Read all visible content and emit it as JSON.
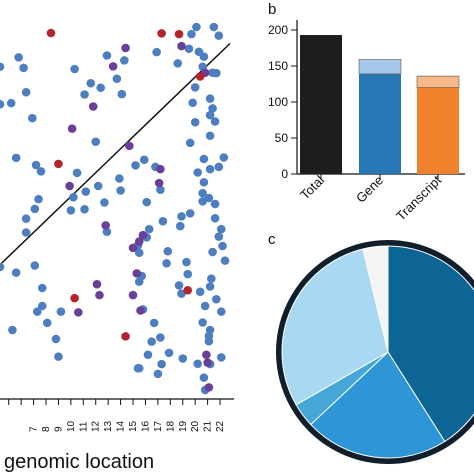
{
  "panel_labels": {
    "b": "b",
    "c": "c"
  },
  "chart_data": [
    {
      "type": "scatter",
      "xlabel": "genomic location",
      "x_ticks": [
        "7",
        "8",
        "9",
        "10",
        "11",
        "12",
        "13",
        "14",
        "15",
        "16",
        "17",
        "18",
        "19",
        "20",
        "21",
        "22"
      ],
      "xlim": [
        4.3,
        22.8
      ],
      "ylim": [
        0,
        1
      ],
      "series": [
        {
          "color": "#4d7fc0",
          "points": [
            [
              4.3,
              0.886
            ],
            [
              4.3,
              0.786
            ],
            [
              4.3,
              0.352
            ],
            [
              5.2,
              0.789
            ],
            [
              5.8,
              0.911
            ],
            [
              6.2,
              0.883
            ],
            [
              6.4,
              0.818
            ],
            [
              6.9,
              0.749
            ],
            [
              5.6,
              0.643
            ],
            [
              7.2,
              0.624
            ],
            [
              7.6,
              0.607
            ],
            [
              7.4,
              0.533
            ],
            [
              7.1,
              0.507
            ],
            [
              6.4,
              0.481
            ],
            [
              6.4,
              0.444
            ],
            [
              7.1,
              0.356
            ],
            [
              5.6,
              0.337
            ],
            [
              7.7,
              0.296
            ],
            [
              7.7,
              0.248
            ],
            [
              7.3,
              0.233
            ],
            [
              5.3,
              0.184
            ],
            [
              8.1,
              0.203
            ],
            [
              9.2,
              0.233
            ],
            [
              8.8,
              0.16
            ],
            [
              9.0,
              0.113
            ],
            [
              10.3,
              0.88
            ],
            [
              11.1,
              0.812
            ],
            [
              11.6,
              0.842
            ],
            [
              12.4,
              0.83
            ],
            [
              12.9,
              0.916
            ],
            [
              13.7,
              0.854
            ],
            [
              14.1,
              0.813
            ],
            [
              12.0,
              0.686
            ],
            [
              10.5,
              0.603
            ],
            [
              11.2,
              0.553
            ],
            [
              12.2,
              0.568
            ],
            [
              12.7,
              0.524
            ],
            [
              10.2,
              0.538
            ],
            [
              10.0,
              0.503
            ],
            [
              11.1,
              0.506
            ],
            [
              13.9,
              0.588
            ],
            [
              14.0,
              0.556
            ],
            [
              12.9,
              0.446
            ],
            [
              15.2,
              0.623
            ],
            [
              15.9,
              0.638
            ],
            [
              16.8,
              0.619
            ],
            [
              16.1,
              0.525
            ],
            [
              16.3,
              0.453
            ],
            [
              17.2,
              0.558
            ],
            [
              17.4,
              0.474
            ],
            [
              15.4,
              0.41
            ],
            [
              15.5,
              0.39
            ],
            [
              16.1,
              0.431
            ],
            [
              15.7,
              0.328
            ],
            [
              15.5,
              0.313
            ],
            [
              15.8,
              0.239
            ],
            [
              16.7,
              0.203
            ],
            [
              16.5,
              0.153
            ],
            [
              17.2,
              0.164
            ],
            [
              16.2,
              0.118
            ],
            [
              15.5,
              0.082
            ],
            [
              15.4,
              0.082
            ],
            [
              17.0,
              0.067
            ],
            [
              17.3,
              0.093
            ],
            [
              17.9,
              0.123
            ],
            [
              19.0,
              0.108
            ],
            [
              20.2,
              0.094
            ],
            [
              21.2,
              0.093
            ],
            [
              20.7,
              0.057
            ],
            [
              21.1,
              0.168
            ],
            [
              20.6,
              0.204
            ],
            [
              20.8,
              0.248
            ],
            [
              20.4,
              0.286
            ],
            [
              18.9,
              0.281
            ],
            [
              18.7,
              0.303
            ],
            [
              19.4,
              0.333
            ],
            [
              19.3,
              0.365
            ],
            [
              17.7,
              0.362
            ],
            [
              17.8,
              0.394
            ],
            [
              18.8,
              0.461
            ],
            [
              18.9,
              0.487
            ],
            [
              19.6,
              0.495
            ],
            [
              20.6,
              0.527
            ],
            [
              20.6,
              0.549
            ],
            [
              20.7,
              0.578
            ],
            [
              20.2,
              0.604
            ],
            [
              20.7,
              0.64
            ],
            [
              19.6,
              0.683
            ],
            [
              20.0,
              0.738
            ],
            [
              19.8,
              0.79
            ],
            [
              20.0,
              0.831
            ],
            [
              20.6,
              0.886
            ],
            [
              20.7,
              0.913
            ],
            [
              20.3,
              0.926
            ],
            [
              19.5,
              0.934
            ],
            [
              18.6,
              0.895
            ],
            [
              14.3,
              0.903
            ],
            [
              16.9,
              0.925
            ],
            [
              19.7,
              0.973
            ],
            [
              20.1,
              0.992
            ],
            [
              21.5,
              0.992
            ],
            [
              21.9,
              0.969
            ],
            [
              21.4,
              0.87
            ],
            [
              21.7,
              0.869
            ],
            [
              21.2,
              0.801
            ],
            [
              21.4,
              0.775
            ],
            [
              21.2,
              0.757
            ],
            [
              21.6,
              0.74
            ],
            [
              21.2,
              0.702
            ],
            [
              22.3,
              0.644
            ],
            [
              21.9,
              0.619
            ],
            [
              21.2,
              0.613
            ],
            [
              21.1,
              0.536
            ],
            [
              21.6,
              0.52
            ],
            [
              21.6,
              0.482
            ],
            [
              22.1,
              0.453
            ],
            [
              21.9,
              0.433
            ],
            [
              22.2,
              0.408
            ],
            [
              21.4,
              0.392
            ],
            [
              22.4,
              0.369
            ],
            [
              21.3,
              0.321
            ],
            [
              21.2,
              0.3
            ],
            [
              21.7,
              0.266
            ],
            [
              22.1,
              0.233
            ],
            [
              21.2,
              0.184
            ],
            [
              21.1,
              0.154
            ],
            [
              22.1,
              0.111
            ],
            [
              20.8,
              0.024
            ]
          ]
        },
        {
          "color": "#6a3f98",
          "points": [
            [
              11.8,
              0.78
            ],
            [
              10.1,
              0.721
            ],
            [
              13.4,
              0.887
            ],
            [
              14.4,
              0.936
            ],
            [
              18.9,
              0.941
            ],
            [
              20.8,
              0.87
            ],
            [
              14.7,
              0.675
            ],
            [
              9.9,
              0.568
            ],
            [
              17.2,
              0.613
            ],
            [
              17.1,
              0.576
            ],
            [
              12.8,
              0.463
            ],
            [
              15.5,
              0.42
            ],
            [
              15.8,
              0.437
            ],
            [
              15.0,
              0.277
            ],
            [
              15.3,
              0.335
            ],
            [
              10.6,
              0.231
            ],
            [
              15.6,
              0.236
            ],
            [
              20.9,
              0.118
            ],
            [
              21.0,
              0.097
            ],
            [
              21.1,
              0.031
            ],
            [
              12.3,
              0.277
            ],
            [
              12.1,
              0.306
            ],
            [
              15.0,
              0.403
            ]
          ]
        },
        {
          "color": "#b5232b",
          "points": [
            [
              8.4,
              0.976
            ],
            [
              17.3,
              0.975
            ],
            [
              18.7,
              0.973
            ],
            [
              20.4,
              0.86
            ],
            [
              9.0,
              0.627
            ],
            [
              10.3,
              0.269
            ],
            [
              19.4,
              0.29
            ],
            [
              14.4,
              0.167
            ]
          ]
        }
      ],
      "reference_line": {
        "from": [
          4.3,
          0.358
        ],
        "to": [
          22.8,
          0.948
        ]
      }
    },
    {
      "type": "bar",
      "panel": "b",
      "categories": [
        "Total",
        "Gene",
        "Transcript"
      ],
      "series": [
        {
          "values": [
            193,
            139,
            120
          ]
        },
        {
          "values": [
            0,
            20,
            16
          ]
        }
      ],
      "colors": {
        "Total": [
          "#1f1c1c",
          "#1f1c1c"
        ],
        "Gene": [
          "#2878b5",
          "#a6c8ea"
        ],
        "Transcript": [
          "#f0822d",
          "#f6b987"
        ]
      },
      "yticks": [
        0,
        50,
        100,
        150,
        200
      ],
      "ylim": [
        0,
        210
      ]
    },
    {
      "type": "pie",
      "panel": "c",
      "slices": [
        {
          "value": 41.0,
          "color": "#0d6596"
        },
        {
          "value": 22.0,
          "color": "#2e96d6"
        },
        {
          "value": 3.7,
          "color": "#46a6d8"
        },
        {
          "value": 29.5,
          "color": "#a9d8f3"
        },
        {
          "value": 3.8,
          "color": "#f4f4f4"
        }
      ],
      "ring_color": "#111f2c"
    }
  ]
}
